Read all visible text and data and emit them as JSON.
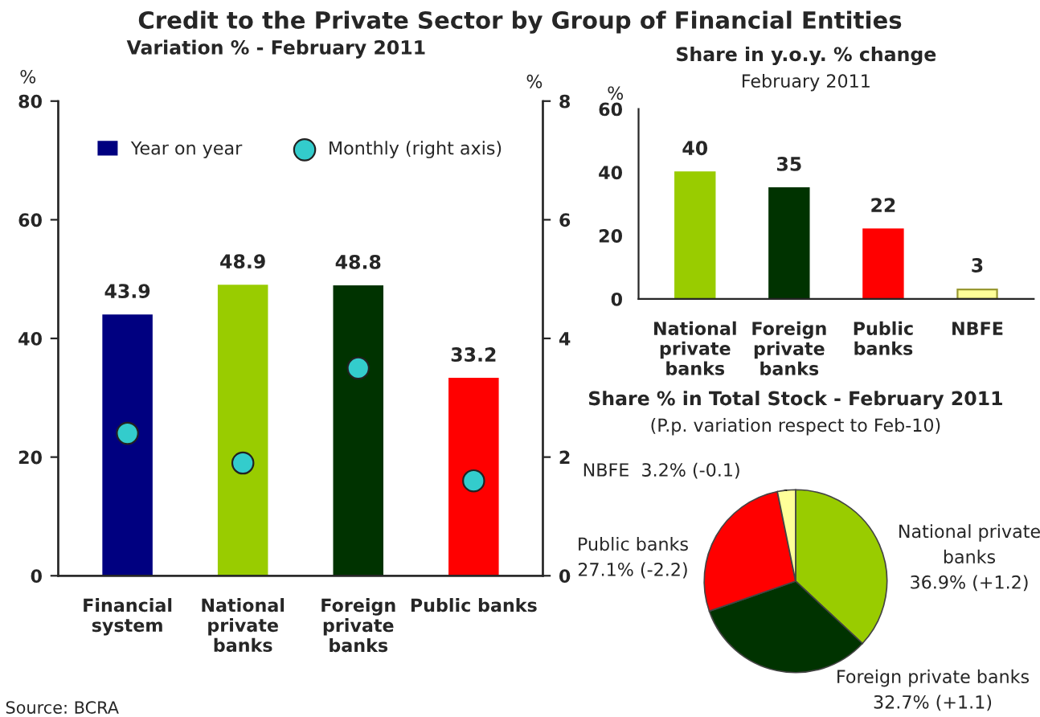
{
  "chart_data": [
    {
      "type": "bar",
      "title": "Credit to the Private Sector by Group of Financial Entities",
      "subtitle": "Variation % - February 2011",
      "ylabel": "%",
      "y2label": "%",
      "categories": [
        "Financial\nsystem",
        "National\nprivate\nbanks",
        "Foreign\nprivate\nbanks",
        "Public banks"
      ],
      "series": [
        {
          "name": "Year on year",
          "type": "bar",
          "colors": [
            "#000080",
            "#99cc00",
            "#003300",
            "#ff0000"
          ],
          "color": "#000080",
          "values": [
            43.9,
            48.9,
            48.8,
            33.2
          ],
          "value_labels": [
            "43.9",
            "48.9",
            "48.8",
            "33.2"
          ]
        },
        {
          "name": "Monthly (right axis)",
          "type": "scatter",
          "axis": "y2",
          "color": "#33cccc",
          "values": [
            2.4,
            1.9,
            3.5,
            1.6
          ]
        }
      ],
      "ylim": [
        0,
        80
      ],
      "yticks": [
        0,
        20,
        40,
        60,
        80
      ],
      "y2lim": [
        0,
        8
      ],
      "y2ticks": [
        0,
        2,
        4,
        6,
        8
      ],
      "marker": "circle",
      "legend": "top",
      "grid": false,
      "annotations": [
        "Source: BCRA"
      ]
    },
    {
      "type": "bar",
      "title": "Share in y.o.y. % change",
      "subtitle": "February 2011",
      "ylabel": "%",
      "categories": [
        "National\nprivate\nbanks",
        "Foreign\nprivate\nbanks",
        "Public\nbanks",
        "NBFE"
      ],
      "values": [
        40,
        35,
        22,
        3
      ],
      "colors": [
        "#99cc00",
        "#003300",
        "#ff0000",
        "#ffff99"
      ],
      "ylim": [
        0,
        60
      ],
      "yticks": [
        0,
        20,
        40,
        60
      ],
      "data_labels": true,
      "grid": false,
      "legend": false
    },
    {
      "type": "pie",
      "title": "Share % in Total Stock - February 2011",
      "subtitle": "(P.p. variation respect to Feb-10)",
      "categories": [
        "National private\nbanks",
        "Foreign private banks",
        "Public banks",
        "NBFE"
      ],
      "values": [
        36.9,
        32.7,
        27.1,
        3.2
      ],
      "value_labels": [
        "36.9% (+1.2)",
        "32.7% (+1.1)",
        "27.1% (-2.2)",
        "3.2% (-0.1)"
      ],
      "colors": [
        "#99cc00",
        "#003300",
        "#ff0000",
        "#ffff99"
      ]
    }
  ]
}
